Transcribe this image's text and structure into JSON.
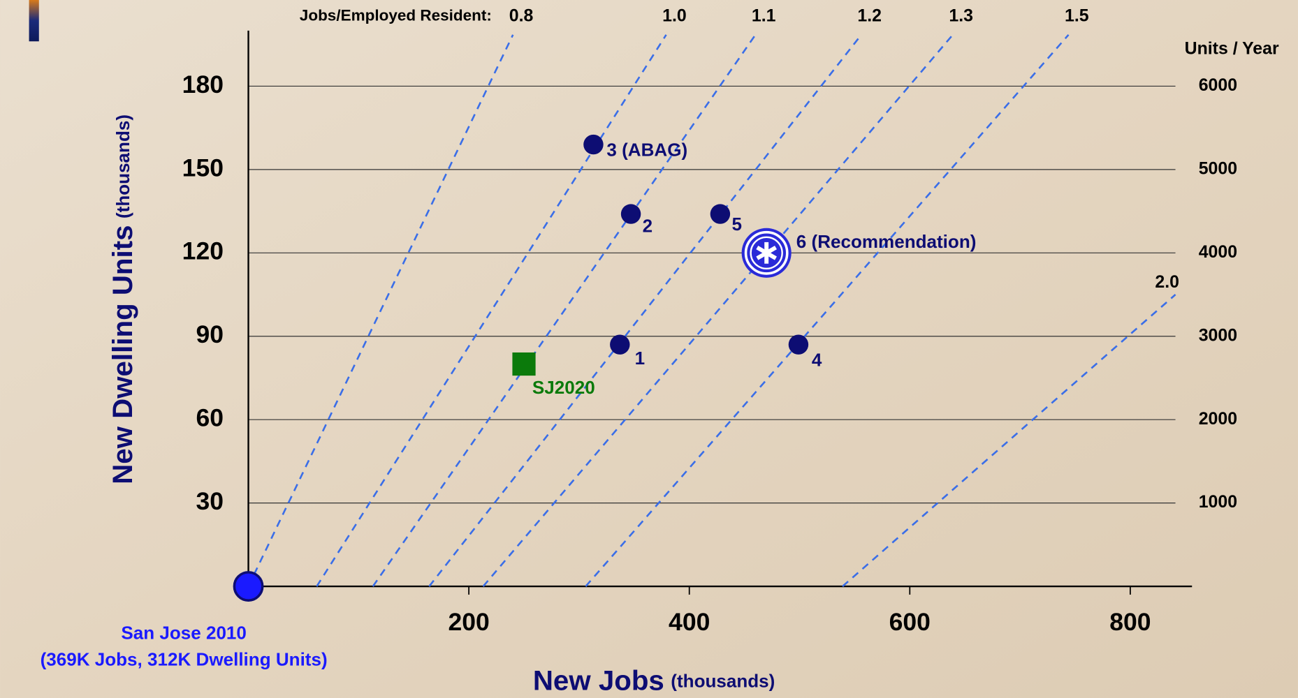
{
  "chart_data": {
    "type": "scatter",
    "x_label": "New Jobs",
    "x_label_unit": "(thousands)",
    "y_label": "New Dwelling Units",
    "y_label_unit": "(thousands)",
    "y2_label": "Units / Year",
    "xlim": [
      0,
      856
    ],
    "ylim": [
      0,
      200
    ],
    "y2lim": [
      0,
      6667
    ],
    "xticks": [
      200,
      400,
      600,
      800
    ],
    "yticks": [
      30,
      60,
      90,
      120,
      150,
      180
    ],
    "y2ticks": [
      1000,
      2000,
      3000,
      4000,
      5000,
      6000
    ],
    "grid": true,
    "ratio_title": "Jobs/Employed Resident:",
    "ratio_color": "#3a6ee8",
    "ratio_lines": [
      {
        "label": "0.8",
        "x": [
          0,
          240
        ],
        "y": [
          0,
          198.5
        ]
      },
      {
        "label": "1.0",
        "x": [
          62,
          379
        ],
        "y": [
          0,
          198.5
        ]
      },
      {
        "label": "1.1",
        "x": [
          113,
          460
        ],
        "y": [
          0,
          198.5
        ]
      },
      {
        "label": "1.2",
        "x": [
          164,
          556
        ],
        "y": [
          0,
          198.5
        ]
      },
      {
        "label": "1.3",
        "x": [
          213,
          639
        ],
        "y": [
          0,
          198.5
        ]
      },
      {
        "label": "1.5",
        "x": [
          306,
          744
        ],
        "y": [
          0,
          198.5
        ]
      },
      {
        "label": "2.0",
        "x": [
          539,
          841
        ],
        "y": [
          0,
          105
        ]
      }
    ],
    "points": [
      {
        "label": [
          "San Jose 2010",
          "(369K Jobs, 312K Dwelling Units)"
        ],
        "x": 0,
        "y": 0,
        "marker": "origin",
        "color": "#1a1aff"
      },
      {
        "label": [
          "1"
        ],
        "x": 337,
        "y": 87,
        "marker": "circle",
        "color": "#0d0d73"
      },
      {
        "label": [
          "2"
        ],
        "x": 347,
        "y": 134,
        "marker": "circle",
        "color": "#0d0d73"
      },
      {
        "label": [
          "3 (ABAG)"
        ],
        "x": 313,
        "y": 159,
        "marker": "circle",
        "color": "#0d0d73"
      },
      {
        "label": [
          "4"
        ],
        "x": 499,
        "y": 87,
        "marker": "circle",
        "color": "#0d0d73"
      },
      {
        "label": [
          "5"
        ],
        "x": 428,
        "y": 134,
        "marker": "circle",
        "color": "#0d0d73"
      },
      {
        "label": [
          "6 (Recommendation)"
        ],
        "x": 470,
        "y": 120,
        "marker": "star",
        "color": "#2a2ad8"
      },
      {
        "label": [
          "SJ2020"
        ],
        "x": 250,
        "y": 80,
        "marker": "square",
        "color": "#0b7a0b"
      }
    ]
  }
}
